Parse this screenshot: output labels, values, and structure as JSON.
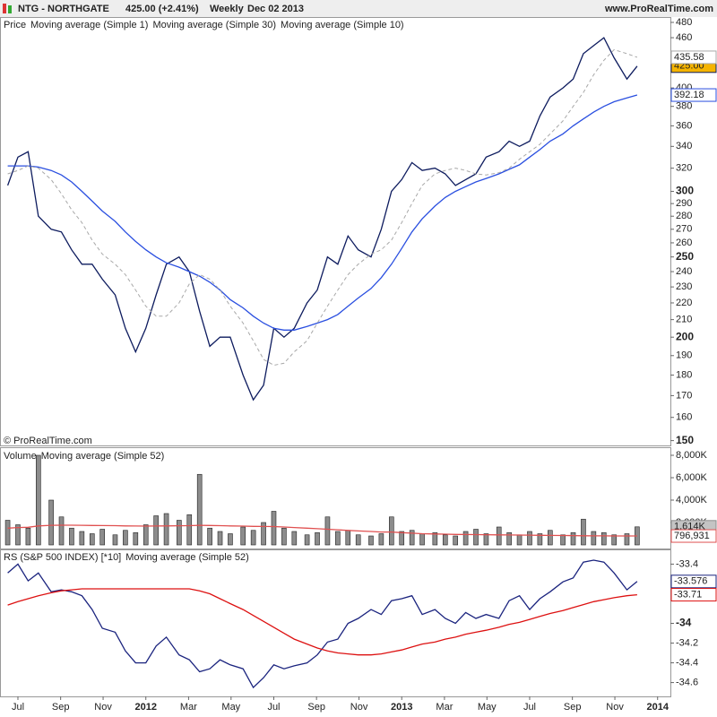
{
  "header": {
    "symbol": "NTG - NORTHGATE",
    "last": "425.00 (+2.41%)",
    "period": "Weekly",
    "date": "Dec 02 2013",
    "site": "www.ProRealTime.com"
  },
  "copyright": "© ProRealTime.com",
  "chart_data": [
    {
      "type": "line",
      "title": "Price",
      "log": true,
      "x": [
        2011.46,
        2011.5,
        2011.54,
        2011.58,
        2011.63,
        2011.67,
        2011.71,
        2011.75,
        2011.79,
        2011.83,
        2011.88,
        2011.92,
        2011.96,
        2012.0,
        2012.04,
        2012.08,
        2012.13,
        2012.17,
        2012.21,
        2012.25,
        2012.29,
        2012.33,
        2012.38,
        2012.42,
        2012.46,
        2012.5,
        2012.54,
        2012.58,
        2012.63,
        2012.67,
        2012.71,
        2012.75,
        2012.79,
        2012.83,
        2012.88,
        2012.92,
        2012.96,
        2013.0,
        2013.04,
        2013.08,
        2013.13,
        2013.17,
        2013.21,
        2013.25,
        2013.29,
        2013.33,
        2013.38,
        2013.42,
        2013.46,
        2013.5,
        2013.54,
        2013.58,
        2013.63,
        2013.67,
        2013.71,
        2013.75,
        2013.79,
        2013.83,
        2013.88,
        2013.92
      ],
      "xlim": [
        2011.43,
        2014.05
      ],
      "xticks": [
        {
          "value": 2011.5,
          "label": "Jul"
        },
        {
          "value": 2011.667,
          "label": "Sep"
        },
        {
          "value": 2011.833,
          "label": "Nov"
        },
        {
          "value": 2012,
          "label": "2012"
        },
        {
          "value": 2012.167,
          "label": "Mar"
        },
        {
          "value": 2012.333,
          "label": "May"
        },
        {
          "value": 2012.5,
          "label": "Jul"
        },
        {
          "value": 2012.667,
          "label": "Sep"
        },
        {
          "value": 2012.833,
          "label": "Nov"
        },
        {
          "value": 2013,
          "label": "2013"
        },
        {
          "value": 2013.167,
          "label": "Mar"
        },
        {
          "value": 2013.333,
          "label": "May"
        },
        {
          "value": 2013.5,
          "label": "Jul"
        },
        {
          "value": 2013.667,
          "label": "Sep"
        },
        {
          "value": 2013.833,
          "label": "Nov"
        },
        {
          "value": 2014,
          "label": "2014"
        }
      ],
      "ylim": [
        148,
        486
      ],
      "yticks": [
        480,
        460,
        400,
        380,
        360,
        340,
        320,
        300,
        290,
        280,
        270,
        260,
        250,
        240,
        230,
        220,
        210,
        200,
        190,
        180,
        170,
        160,
        150
      ],
      "series": [
        {
          "name": "Moving average (Simple 1)",
          "color": "#0d1b5e",
          "style": "line",
          "values": [
            305,
            330,
            335,
            280,
            270,
            268,
            255,
            245,
            245,
            235,
            225,
            205,
            192,
            205,
            225,
            245,
            250,
            240,
            215,
            195,
            200,
            200,
            180,
            168,
            175,
            205,
            200,
            205,
            220,
            228,
            250,
            245,
            265,
            255,
            250,
            270,
            300,
            310,
            325,
            318,
            320,
            315,
            305,
            310,
            315,
            330,
            335,
            345,
            340,
            345,
            370,
            390,
            400,
            410,
            440,
            450,
            460,
            435,
            410,
            425
          ],
          "value_labels": [
            null,
            null,
            null,
            null,
            null,
            null,
            null,
            null,
            null,
            null,
            null,
            null,
            null,
            null,
            null,
            null,
            null,
            null,
            null,
            null,
            null,
            null,
            null,
            null,
            null,
            null,
            null,
            null,
            null,
            null,
            null,
            null,
            null,
            null,
            null,
            null,
            null,
            null,
            null,
            null,
            null,
            null,
            null,
            null,
            null,
            null,
            null,
            null,
            null,
            null,
            null,
            null,
            null,
            null,
            null,
            null,
            null,
            null,
            null,
            "425.00"
          ],
          "label_fill": "#f5b400"
        },
        {
          "name": "Moving average (Simple 30)",
          "color": "#2a4fe0",
          "style": "line",
          "values": [
            322,
            322,
            322,
            321,
            318,
            314,
            308,
            300,
            292,
            284,
            276,
            268,
            261,
            255,
            250,
            246,
            243,
            240,
            237,
            233,
            228,
            222,
            217,
            212,
            208,
            205,
            204,
            204,
            206,
            208,
            210,
            213,
            218,
            223,
            229,
            236,
            245,
            256,
            268,
            278,
            288,
            295,
            300,
            304,
            308,
            311,
            315,
            319,
            323,
            330,
            337,
            345,
            352,
            360,
            367,
            374,
            380,
            385,
            389,
            392.18
          ]
        },
        {
          "name": "Moving average (Simple 10)",
          "color": "#a8a8a8",
          "style": "dash",
          "values": [
            315,
            318,
            322,
            320,
            310,
            298,
            285,
            275,
            262,
            252,
            245,
            238,
            228,
            218,
            212,
            212,
            220,
            232,
            238,
            235,
            228,
            218,
            208,
            198,
            188,
            185,
            186,
            192,
            198,
            208,
            218,
            228,
            238,
            245,
            252,
            255,
            262,
            275,
            290,
            305,
            315,
            318,
            320,
            318,
            315,
            314,
            316,
            320,
            328,
            335,
            342,
            352,
            365,
            380,
            395,
            415,
            432,
            445,
            440,
            435.58
          ]
        }
      ]
    },
    {
      "type": "bar",
      "ylim": [
        0,
        8640000
      ],
      "yticks": [
        {
          "value": 8000000,
          "label": "8,000K"
        },
        {
          "value": 6000000,
          "label": "6,000K"
        },
        {
          "value": 4000000,
          "label": "4,000K"
        },
        {
          "value": 2000000,
          "label": "2,000K"
        }
      ],
      "series": [
        {
          "name": "Volume",
          "color": "#8c8c8c",
          "style": "bars",
          "values": [
            2200000,
            1800000,
            1500000,
            8000000,
            4000000,
            2500000,
            1500000,
            1200000,
            1000000,
            1400000,
            900000,
            1300000,
            1100000,
            1800000,
            2600000,
            2800000,
            2200000,
            2700000,
            6300000,
            1500000,
            1200000,
            1000000,
            1600000,
            1300000,
            2000000,
            3000000,
            1500000,
            1200000,
            900000,
            1100000,
            2500000,
            1200000,
            1300000,
            900000,
            800000,
            1000000,
            2500000,
            1200000,
            1300000,
            1000000,
            1100000,
            900000,
            800000,
            1200000,
            1400000,
            1000000,
            1600000,
            1100000,
            900000,
            1200000,
            1000000,
            1300000,
            900000,
            1100000,
            2300000,
            1200000,
            1100000,
            900000,
            1000000,
            1614000
          ],
          "value_labels": [
            null,
            null,
            null,
            null,
            null,
            null,
            null,
            null,
            null,
            null,
            null,
            null,
            null,
            null,
            null,
            null,
            null,
            null,
            null,
            null,
            null,
            null,
            null,
            null,
            null,
            null,
            null,
            null,
            null,
            null,
            null,
            null,
            null,
            null,
            null,
            null,
            null,
            null,
            null,
            null,
            null,
            null,
            null,
            null,
            null,
            null,
            null,
            null,
            null,
            null,
            null,
            null,
            null,
            null,
            null,
            null,
            null,
            null,
            null,
            "1,614K"
          ],
          "label_fill": "#c4c4c4"
        },
        {
          "name": "Moving average (Simple 52)",
          "color": "#e05050",
          "style": "line",
          "values": [
            1500000,
            1550000,
            1580000,
            1700000,
            1750000,
            1760000,
            1760000,
            1750000,
            1740000,
            1730000,
            1720000,
            1700000,
            1690000,
            1680000,
            1690000,
            1700000,
            1710000,
            1720000,
            1750000,
            1740000,
            1720000,
            1700000,
            1680000,
            1660000,
            1650000,
            1640000,
            1600000,
            1550000,
            1500000,
            1450000,
            1400000,
            1350000,
            1300000,
            1250000,
            1200000,
            1150000,
            1150000,
            1100000,
            1050000,
            1000000,
            980000,
            960000,
            940000,
            930000,
            920000,
            910000,
            900000,
            890000,
            880000,
            870000,
            860000,
            850000,
            840000,
            830000,
            820000,
            810000,
            805000,
            800000,
            798000,
            796931
          ],
          "value_labels": [
            null,
            null,
            null,
            null,
            null,
            null,
            null,
            null,
            null,
            null,
            null,
            null,
            null,
            null,
            null,
            null,
            null,
            null,
            null,
            null,
            null,
            null,
            null,
            null,
            null,
            null,
            null,
            null,
            null,
            null,
            null,
            null,
            null,
            null,
            null,
            null,
            null,
            null,
            null,
            null,
            null,
            null,
            null,
            null,
            null,
            null,
            null,
            null,
            null,
            null,
            null,
            null,
            null,
            null,
            null,
            null,
            null,
            null,
            null,
            "796,931"
          ]
        }
      ]
    },
    {
      "type": "line",
      "ylim": [
        -34.74,
        -33.26
      ],
      "yticks": [
        -33.4,
        -34,
        -34.2,
        -34.4,
        -34.6
      ],
      "series": [
        {
          "name": "RS (S&P 500 INDEX) [*10]",
          "color": "#1a237e",
          "style": "line",
          "values": [
            -33.49,
            -33.4,
            -33.57,
            -33.49,
            -33.68,
            -33.66,
            -33.68,
            -33.72,
            -33.86,
            -34.05,
            -34.09,
            -34.28,
            -34.4,
            -34.4,
            -34.23,
            -34.14,
            -34.32,
            -34.37,
            -34.49,
            -34.46,
            -34.37,
            -34.42,
            -34.46,
            -34.65,
            -34.55,
            -34.42,
            -34.46,
            -34.43,
            -34.4,
            -34.32,
            -34.19,
            -34.16,
            -34,
            -33.95,
            -33.86,
            -33.91,
            -33.77,
            -33.75,
            -33.72,
            -33.91,
            -33.86,
            -33.95,
            -34,
            -33.89,
            -33.95,
            -33.91,
            -33.95,
            -33.77,
            -33.72,
            -33.86,
            -33.75,
            -33.68,
            -33.58,
            -33.54,
            -33.38,
            -33.36,
            -33.38,
            -33.49,
            -33.66,
            -33.576
          ]
        },
        {
          "name": "Moving average (Simple 52)",
          "color": "#dd1111",
          "style": "line",
          "values": [
            -33.815,
            -33.78,
            -33.75,
            -33.72,
            -33.69,
            -33.67,
            -33.66,
            -33.65,
            -33.65,
            -33.65,
            -33.65,
            -33.65,
            -33.65,
            -33.65,
            -33.65,
            -33.65,
            -33.65,
            -33.65,
            -33.67,
            -33.7,
            -33.75,
            -33.8,
            -33.86,
            -33.92,
            -33.98,
            -34.04,
            -34.1,
            -34.16,
            -34.21,
            -34.25,
            -34.28,
            -34.3,
            -34.31,
            -34.32,
            -34.32,
            -34.31,
            -34.29,
            -34.27,
            -34.24,
            -34.21,
            -34.19,
            -34.16,
            -34.14,
            -34.11,
            -34.09,
            -34.07,
            -34.04,
            -34.01,
            -33.99,
            -33.96,
            -33.93,
            -33.9,
            -33.87,
            -33.84,
            -33.81,
            -33.78,
            -33.76,
            -33.74,
            -33.72,
            -33.71
          ]
        }
      ]
    }
  ]
}
